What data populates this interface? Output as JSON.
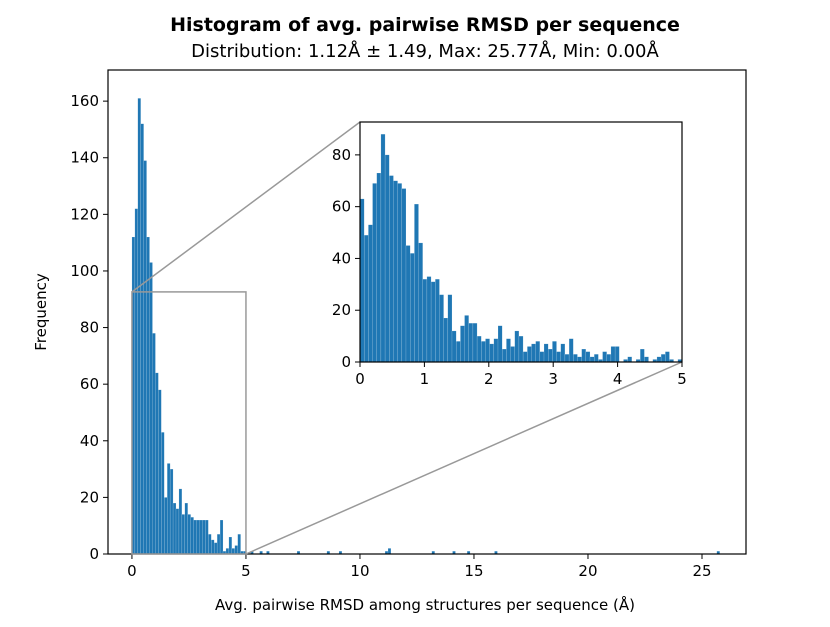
{
  "chart_data": {
    "type": "bar",
    "title": "Histogram of avg. pairwise RMSD per sequence",
    "subtitle": "Distribution: 1.12Å ± 1.49, Max: 25.77Å, Min: 0.00Å",
    "xlabel": "Avg. pairwise RMSD among structures per sequence (Å)",
    "ylabel": "Frequency",
    "bar_color": "#1f77b4",
    "indicator_color": "#999999",
    "main": {
      "xlim": [
        -1.05,
        26.93
      ],
      "ylim": [
        0,
        171
      ],
      "xticks": [
        0,
        5,
        10,
        15,
        20,
        25
      ],
      "yticks": [
        0,
        20,
        40,
        60,
        80,
        100,
        120,
        140,
        160
      ],
      "bin_width": 0.12885,
      "counts_from_zero": [
        112,
        122,
        161,
        152,
        139,
        112,
        103,
        78,
        64,
        58,
        43,
        20,
        32,
        30,
        18,
        16,
        23,
        14,
        18,
        14,
        13,
        12,
        12,
        12,
        12,
        12,
        7,
        5,
        4,
        7,
        12,
        1,
        2,
        6,
        2,
        3,
        7,
        1,
        1
      ],
      "tail": [
        [
          5.2,
          1
        ],
        [
          5.6,
          1
        ],
        [
          5.9,
          1
        ],
        [
          7.24,
          1
        ],
        [
          8.55,
          1
        ],
        [
          9.08,
          1
        ],
        [
          11.1,
          1
        ],
        [
          11.23,
          2
        ],
        [
          13.15,
          1
        ],
        [
          14.06,
          1
        ],
        [
          14.7,
          1
        ],
        [
          15.9,
          1
        ],
        [
          25.65,
          1
        ]
      ]
    },
    "inset": {
      "xlim": [
        0,
        5
      ],
      "ylim": [
        0,
        92.7
      ],
      "xticks": [
        0,
        1,
        2,
        3,
        4,
        5
      ],
      "yticks": [
        0,
        20,
        40,
        60,
        80
      ],
      "bin_width": 0.06494,
      "counts": [
        63,
        49,
        53,
        69,
        73,
        88,
        80,
        72,
        70,
        69,
        67,
        45,
        42,
        61,
        46,
        32,
        33,
        31,
        32,
        26,
        17,
        26,
        12,
        8,
        14,
        18,
        15,
        15,
        10,
        8,
        9,
        7,
        9,
        14,
        5,
        9,
        6,
        12,
        10,
        4,
        6,
        7,
        8,
        4,
        7,
        5,
        8,
        4,
        7,
        3,
        9,
        3,
        2,
        5,
        4,
        2,
        3,
        1,
        4,
        3,
        6,
        6,
        0,
        1,
        2,
        0,
        1,
        5,
        2,
        0,
        1,
        2,
        3,
        4,
        1,
        0,
        1
      ]
    },
    "zoom_region": {
      "x": [
        0,
        5
      ],
      "y": [
        0,
        92.6
      ]
    }
  }
}
